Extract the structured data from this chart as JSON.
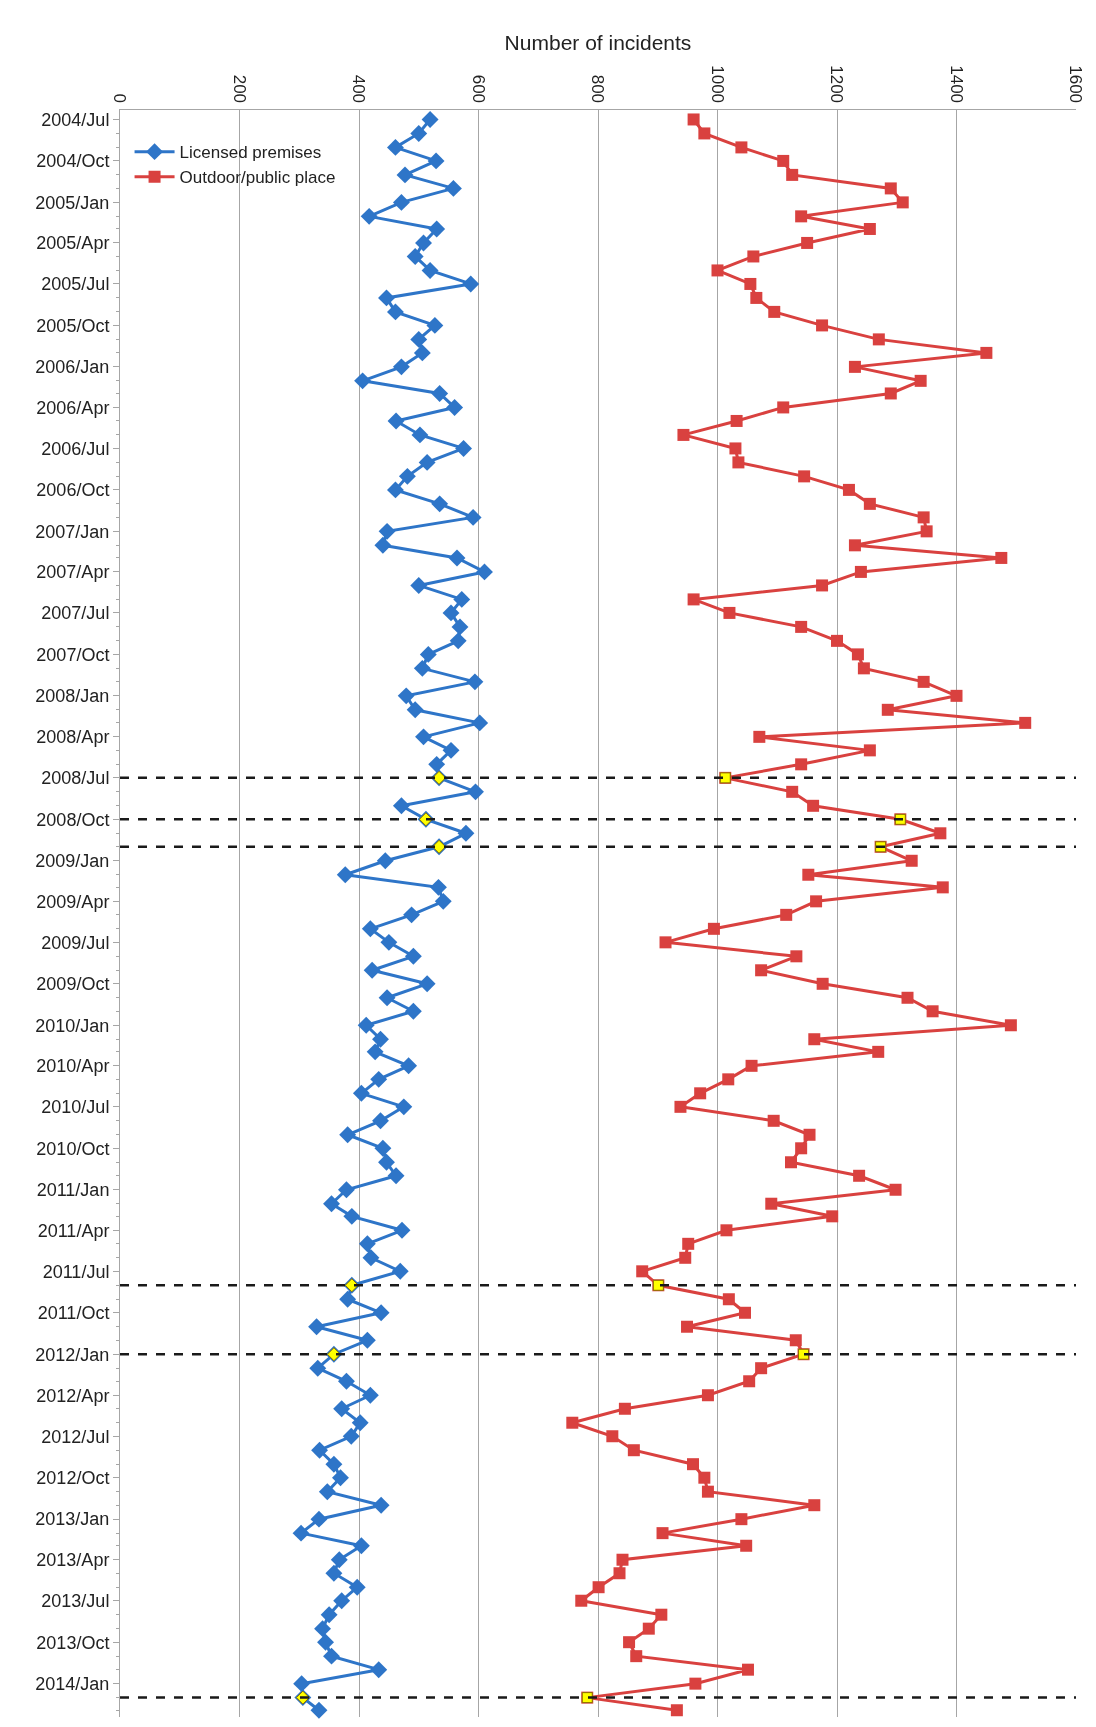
{
  "chart_data": {
    "type": "line",
    "orientation": "horizontal",
    "xlabel": "Number of incidents",
    "x": [
      "2004-07",
      "2004-08",
      "2004-09",
      "2004-10",
      "2004-11",
      "2004-12",
      "2005-01",
      "2005-02",
      "2005-03",
      "2005-04",
      "2005-05",
      "2005-06",
      "2005-07",
      "2005-08",
      "2005-09",
      "2005-10",
      "2005-11",
      "2005-12",
      "2006-01",
      "2006-02",
      "2006-03",
      "2006-04",
      "2006-05",
      "2006-06",
      "2006-07",
      "2006-08",
      "2006-09",
      "2006-10",
      "2006-11",
      "2006-12",
      "2007-01",
      "2007-02",
      "2007-03",
      "2007-04",
      "2007-05",
      "2007-06",
      "2007-07",
      "2007-08",
      "2007-09",
      "2007-10",
      "2007-11",
      "2007-12",
      "2008-01",
      "2008-02",
      "2008-03",
      "2008-04",
      "2008-05",
      "2008-06",
      "2008-07",
      "2008-08",
      "2008-09",
      "2008-10",
      "2008-11",
      "2008-12",
      "2009-01",
      "2009-02",
      "2009-03",
      "2009-04",
      "2009-05",
      "2009-06",
      "2009-07",
      "2009-08",
      "2009-09",
      "2009-10",
      "2009-11",
      "2009-12",
      "2010-01",
      "2010-02",
      "2010-03",
      "2010-04",
      "2010-05",
      "2010-06",
      "2010-07",
      "2010-08",
      "2010-09",
      "2010-10",
      "2010-11",
      "2010-12",
      "2011-01",
      "2011-02",
      "2011-03",
      "2011-04",
      "2011-05",
      "2011-06",
      "2011-07",
      "2011-08",
      "2011-09",
      "2011-10",
      "2011-11",
      "2011-12",
      "2012-01",
      "2012-02",
      "2012-03",
      "2012-04",
      "2012-05",
      "2012-06",
      "2012-07",
      "2012-08",
      "2012-09",
      "2012-10",
      "2012-11",
      "2012-12",
      "2013-01",
      "2013-02",
      "2013-03",
      "2013-04",
      "2013-05",
      "2013-06",
      "2013-07",
      "2013-08",
      "2013-09",
      "2013-10",
      "2013-11",
      "2013-12",
      "2014-01",
      "2014-02",
      "2014-03"
    ],
    "xlim": [
      0,
      1600
    ],
    "xticks": [
      0,
      200,
      400,
      600,
      800,
      1000,
      1200,
      1400,
      1600
    ],
    "ylim": [
      "2014-03-16",
      "2004-06-10"
    ],
    "yticks": [
      {
        "value": "2004-07",
        "label": "2004/Jul"
      },
      {
        "value": "2004-10",
        "label": "2004/Oct"
      },
      {
        "value": "2005-01",
        "label": "2005/Jan"
      },
      {
        "value": "2005-04",
        "label": "2005/Apr"
      },
      {
        "value": "2005-07",
        "label": "2005/Jul"
      },
      {
        "value": "2005-10",
        "label": "2005/Oct"
      },
      {
        "value": "2006-01",
        "label": "2006/Jan"
      },
      {
        "value": "2006-04",
        "label": "2006/Apr"
      },
      {
        "value": "2006-07",
        "label": "2006/Jul"
      },
      {
        "value": "2006-10",
        "label": "2006/Oct"
      },
      {
        "value": "2007-01",
        "label": "2007/Jan"
      },
      {
        "value": "2007-04",
        "label": "2007/Apr"
      },
      {
        "value": "2007-07",
        "label": "2007/Jul"
      },
      {
        "value": "2007-10",
        "label": "2007/Oct"
      },
      {
        "value": "2008-01",
        "label": "2008/Jan"
      },
      {
        "value": "2008-04",
        "label": "2008/Apr"
      },
      {
        "value": "2008-07",
        "label": "2008/Jul"
      },
      {
        "value": "2008-10",
        "label": "2008/Oct"
      },
      {
        "value": "2009-01",
        "label": "2009/Jan"
      },
      {
        "value": "2009-04",
        "label": "2009/Apr"
      },
      {
        "value": "2009-07",
        "label": "2009/Jul"
      },
      {
        "value": "2009-10",
        "label": "2009/Oct"
      },
      {
        "value": "2010-01",
        "label": "2010/Jan"
      },
      {
        "value": "2010-04",
        "label": "2010/Apr"
      },
      {
        "value": "2010-07",
        "label": "2010/Jul"
      },
      {
        "value": "2010-10",
        "label": "2010/Oct"
      },
      {
        "value": "2011-01",
        "label": "2011/Jan"
      },
      {
        "value": "2011-04",
        "label": "2011/Apr"
      },
      {
        "value": "2011-07",
        "label": "2011/Jul"
      },
      {
        "value": "2011-10",
        "label": "2011/Oct"
      },
      {
        "value": "2012-01",
        "label": "2012/Jan"
      },
      {
        "value": "2012-04",
        "label": "2012/Apr"
      },
      {
        "value": "2012-07",
        "label": "2012/Jul"
      },
      {
        "value": "2012-10",
        "label": "2012/Oct"
      },
      {
        "value": "2013-01",
        "label": "2013/Jan"
      },
      {
        "value": "2013-04",
        "label": "2013/Apr"
      },
      {
        "value": "2013-07",
        "label": "2013/Jul"
      },
      {
        "value": "2013-10",
        "label": "2013/Oct"
      },
      {
        "value": "2014-01",
        "label": "2014/Jan"
      }
    ],
    "grid": "x",
    "legend": "top left",
    "series": [
      {
        "name": "Licensed premises",
        "color": "#2e75c8",
        "marker": "diamond",
        "values": [
          519,
          500,
          461,
          529,
          477,
          558,
          471,
          417,
          530,
          508,
          494,
          519,
          587,
          446,
          461,
          527,
          500,
          506,
          471,
          406,
          535,
          560,
          462,
          502,
          575,
          514,
          481,
          461,
          535,
          591,
          447,
          440,
          564,
          610,
          500,
          572,
          554,
          569,
          566,
          516,
          506,
          594,
          479,
          494,
          602,
          508,
          554,
          530,
          534,
          595,
          471,
          512,
          579,
          534,
          444,
          377,
          533,
          541,
          488,
          419,
          450,
          491,
          422,
          514,
          447,
          491,
          412,
          436,
          427,
          483,
          433,
          404,
          475,
          436,
          381,
          440,
          446,
          462,
          379,
          354,
          388,
          472,
          414,
          420,
          469,
          388,
          381,
          437,
          329,
          414,
          358,
          331,
          379,
          419,
          371,
          402,
          387,
          334,
          358,
          369,
          347,
          437,
          333,
          303,
          404,
          367,
          358,
          397,
          371,
          350,
          339,
          344,
          354,
          433,
          304,
          306,
          333
        ]
      },
      {
        "name": "Outdoor/public place",
        "color": "#d9413f",
        "marker": "square",
        "values": [
          960,
          978,
          1040,
          1110,
          1125,
          1290,
          1310,
          1140,
          1255,
          1150,
          1060,
          1000,
          1055,
          1065,
          1095,
          1175,
          1270,
          1450,
          1230,
          1340,
          1290,
          1110,
          1032,
          943,
          1030,
          1035,
          1145,
          1220,
          1255,
          1345,
          1350,
          1230,
          1475,
          1240,
          1175,
          960,
          1020,
          1140,
          1200,
          1235,
          1245,
          1345,
          1400,
          1285,
          1515,
          1070,
          1255,
          1140,
          1013,
          1125,
          1160,
          1306,
          1373,
          1273,
          1325,
          1152,
          1377,
          1165,
          1115,
          994,
          913,
          1132,
          1073,
          1176,
          1318,
          1360,
          1491,
          1162,
          1269,
          1057,
          1018,
          971,
          938,
          1094,
          1154,
          1140,
          1123,
          1237,
          1298,
          1090,
          1192,
          1015,
          951,
          946,
          874,
          901,
          1019,
          1046,
          949,
          1131,
          1144,
          1073,
          1053,
          984,
          845,
          757,
          824,
          860,
          959,
          978,
          984,
          1162,
          1040,
          908,
          1048,
          841,
          836,
          801,
          772,
          906,
          885,
          852,
          864,
          1051,
          963,
          782,
          932
        ]
      },
      {
        "type": "scatter",
        "color": "#ffff00",
        "marker": "diamond",
        "x": [
          "2008-07",
          "2008-10",
          "2008-12",
          "2011-08",
          "2012-01",
          "2014-02"
        ],
        "values": [
          534,
          512,
          534,
          388,
          358,
          306
        ]
      },
      {
        "type": "scatter",
        "color": "#ffff00",
        "marker": "square",
        "x": [
          "2008-07",
          "2008-10",
          "2008-12",
          "2011-08",
          "2012-01",
          "2014-02"
        ],
        "values": [
          1013,
          1306,
          1273,
          901,
          1144,
          782
        ]
      }
    ],
    "ref_lines": [
      {
        "axis": "y",
        "value": "2008-07",
        "color": "#1a1a1a",
        "line_style": "dashed"
      },
      {
        "axis": "y",
        "value": "2008-10",
        "color": "#1a1a1a",
        "line_style": "dashed"
      },
      {
        "axis": "y",
        "value": "2008-12",
        "color": "#1a1a1a",
        "line_style": "dashed"
      },
      {
        "axis": "y",
        "value": "2011-08",
        "color": "#1a1a1a",
        "line_style": "dashed"
      },
      {
        "axis": "y",
        "value": "2012-01",
        "color": "#1a1a1a",
        "line_style": "dashed"
      },
      {
        "axis": "y",
        "value": "2014-02",
        "color": "#1a1a1a",
        "line_style": "dashed"
      }
    ]
  }
}
